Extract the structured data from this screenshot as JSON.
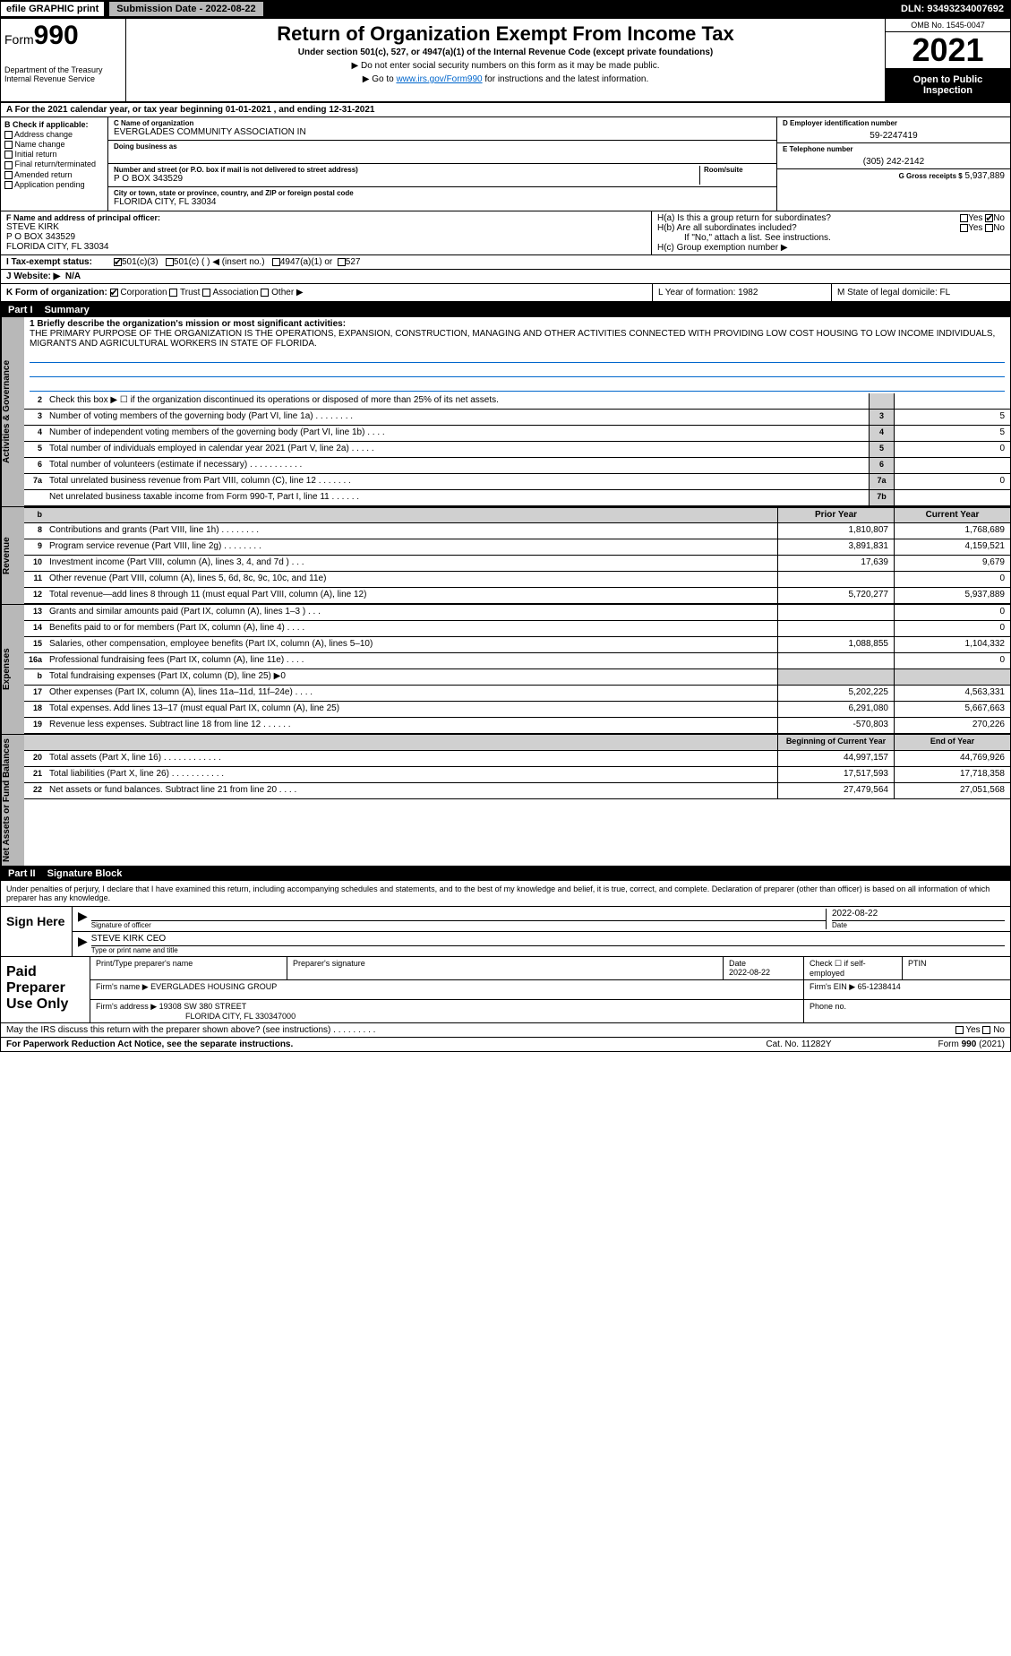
{
  "topbar": {
    "efile": "efile GRAPHIC print",
    "submission": "Submission Date - 2022-08-22",
    "dln": "DLN: 93493234007692"
  },
  "header": {
    "form_word": "Form",
    "form_num": "990",
    "title": "Return of Organization Exempt From Income Tax",
    "subtitle": "Under section 501(c), 527, or 4947(a)(1) of the Internal Revenue Code (except private foundations)",
    "note1": "▶ Do not enter social security numbers on this form as it may be made public.",
    "note2_pre": "▶ Go to ",
    "note2_link": "www.irs.gov/Form990",
    "note2_post": " for instructions and the latest information.",
    "dept": "Department of the Treasury\nInternal Revenue Service",
    "omb": "OMB No. 1545-0047",
    "year": "2021",
    "open": "Open to Public Inspection"
  },
  "period": "A For the 2021 calendar year, or tax year beginning 01-01-2021     , and ending 12-31-2021",
  "colB": {
    "hdr": "B Check if applicable:",
    "addr": "Address change",
    "name": "Name change",
    "initial": "Initial return",
    "final": "Final return/terminated",
    "amended": "Amended return",
    "app": "Application pending"
  },
  "colC": {
    "name_lbl": "C Name of organization",
    "name_val": "EVERGLADES COMMUNITY ASSOCIATION IN",
    "dba_lbl": "Doing business as",
    "dba_val": "",
    "addr_lbl": "Number and street (or P.O. box if mail is not delivered to street address)",
    "room_lbl": "Room/suite",
    "addr_val": "P O BOX 343529",
    "city_lbl": "City or town, state or province, country, and ZIP or foreign postal code",
    "city_val": "FLORIDA CITY, FL  33034"
  },
  "colD": {
    "ein_lbl": "D Employer identification number",
    "ein_val": "59-2247419",
    "tel_lbl": "E Telephone number",
    "tel_val": "(305) 242-2142",
    "gross_lbl": "G Gross receipts $",
    "gross_val": "5,937,889"
  },
  "rowF": {
    "lbl": "F  Name and address of principal officer:",
    "name": "STEVE KIRK",
    "addr1": "P O BOX 343529",
    "addr2": "FLORIDA CITY, FL  33034"
  },
  "rowH": {
    "ha": "H(a)  Is this a group return for subordinates?",
    "hb": "H(b)  Are all subordinates included?",
    "hb_note": "If \"No,\" attach a list. See instructions.",
    "hc": "H(c)  Group exemption number ▶",
    "yes": "Yes",
    "no": "No"
  },
  "taxrow": {
    "lbl": "I   Tax-exempt status:",
    "o1": "501(c)(3)",
    "o2": "501(c) (  ) ◀ (insert no.)",
    "o3": "4947(a)(1) or",
    "o4": "527"
  },
  "website": {
    "lbl": "J   Website: ▶",
    "val": "N/A"
  },
  "korg": {
    "lbl": "K Form of organization:",
    "corp": "Corporation",
    "trust": "Trust",
    "assoc": "Association",
    "other": "Other ▶",
    "l": "L Year of formation: 1982",
    "m": "M State of legal domicile: FL"
  },
  "part1": {
    "hdr": "Part I",
    "title": "Summary"
  },
  "mission": {
    "lbl": "1  Briefly describe the organization's mission or most significant activities:",
    "text": "THE PRIMARY PURPOSE OF THE ORGANIZATION IS THE OPERATIONS, EXPANSION, CONSTRUCTION, MANAGING AND OTHER ACTIVITIES CONNECTED WITH PROVIDING LOW COST HOUSING TO LOW INCOME INDIVIDUALS, MIGRANTS AND AGRICULTURAL WORKERS IN STATE OF FLORIDA."
  },
  "gov_rows": [
    {
      "n": "2",
      "t": "Check this box ▶ ☐  if the organization discontinued its operations or disposed of more than 25% of its net assets.",
      "b": "",
      "v": ""
    },
    {
      "n": "3",
      "t": "Number of voting members of the governing body (Part VI, line 1a)   .    .    .    .    .    .    .    .",
      "b": "3",
      "v": "5"
    },
    {
      "n": "4",
      "t": "Number of independent voting members of the governing body (Part VI, line 1b)    .    .    .    .",
      "b": "4",
      "v": "5"
    },
    {
      "n": "5",
      "t": "Total number of individuals employed in calendar year 2021 (Part V, line 2a)   .    .    .    .    .",
      "b": "5",
      "v": "0"
    },
    {
      "n": "6",
      "t": "Total number of volunteers (estimate if necessary)    .    .    .    .    .    .    .    .    .    .    .",
      "b": "6",
      "v": ""
    },
    {
      "n": "7a",
      "t": "Total unrelated business revenue from Part VIII, column (C), line 12   .    .    .    .    .    .    .",
      "b": "7a",
      "v": "0"
    },
    {
      "n": "",
      "t": "Net unrelated business taxable income from Form 990-T, Part I, line 11    .    .    .    .    .    .",
      "b": "7b",
      "v": ""
    }
  ],
  "two_col_hdr": {
    "prior": "Prior Year",
    "current": "Current Year"
  },
  "revenue_rows": [
    {
      "n": "8",
      "t": "Contributions and grants (Part VIII, line 1h)    .    .    .    .    .    .    .    .",
      "p": "1,810,807",
      "c": "1,768,689"
    },
    {
      "n": "9",
      "t": "Program service revenue (Part VIII, line 2g)   .    .    .    .    .    .    .    .",
      "p": "3,891,831",
      "c": "4,159,521"
    },
    {
      "n": "10",
      "t": "Investment income (Part VIII, column (A), lines 3, 4, and 7d )    .    .    .",
      "p": "17,639",
      "c": "9,679"
    },
    {
      "n": "11",
      "t": "Other revenue (Part VIII, column (A), lines 5, 6d, 8c, 9c, 10c, and 11e)",
      "p": "",
      "c": "0"
    },
    {
      "n": "12",
      "t": "Total revenue—add lines 8 through 11 (must equal Part VIII, column (A), line 12)",
      "p": "5,720,277",
      "c": "5,937,889"
    }
  ],
  "expense_rows": [
    {
      "n": "13",
      "t": "Grants and similar amounts paid (Part IX, column (A), lines 1–3 )  .    .    .",
      "p": "",
      "c": "0"
    },
    {
      "n": "14",
      "t": "Benefits paid to or for members (Part IX, column (A), line 4)  .    .    .    .",
      "p": "",
      "c": "0"
    },
    {
      "n": "15",
      "t": "Salaries, other compensation, employee benefits (Part IX, column (A), lines 5–10)",
      "p": "1,088,855",
      "c": "1,104,332"
    },
    {
      "n": "16a",
      "t": "Professional fundraising fees (Part IX, column (A), line 11e)   .    .    .    .",
      "p": "",
      "c": "0"
    },
    {
      "n": "b",
      "t": "Total fundraising expenses (Part IX, column (D), line 25) ▶0",
      "p": "",
      "c": "",
      "gray": true
    },
    {
      "n": "17",
      "t": "Other expenses (Part IX, column (A), lines 11a–11d, 11f–24e)   .    .    .    .",
      "p": "5,202,225",
      "c": "4,563,331"
    },
    {
      "n": "18",
      "t": "Total expenses. Add lines 13–17 (must equal Part IX, column (A), line 25)",
      "p": "6,291,080",
      "c": "5,667,663"
    },
    {
      "n": "19",
      "t": "Revenue less expenses. Subtract line 18 from line 12  .    .    .    .    .    .",
      "p": "-570,803",
      "c": "270,226"
    }
  ],
  "net_hdr": {
    "prior": "Beginning of Current Year",
    "current": "End of Year"
  },
  "net_rows": [
    {
      "n": "20",
      "t": "Total assets (Part X, line 16)  .    .    .    .    .    .    .    .    .    .    .    .",
      "p": "44,997,157",
      "c": "44,769,926"
    },
    {
      "n": "21",
      "t": "Total liabilities (Part X, line 26)   .    .    .    .    .    .    .    .    .    .    .",
      "p": "17,517,593",
      "c": "17,718,358"
    },
    {
      "n": "22",
      "t": "Net assets or fund balances. Subtract line 21 from line 20    .    .    .    .",
      "p": "27,479,564",
      "c": "27,051,568"
    }
  ],
  "part2": {
    "hdr": "Part II",
    "title": "Signature Block"
  },
  "sig": {
    "decl": "Under penalties of perjury, I declare that I have examined this return, including accompanying schedules and statements, and to the best of my knowledge and belief, it is true, correct, and complete. Declaration of preparer (other than officer) is based on all information of which preparer has any knowledge.",
    "sign_here": "Sign Here",
    "sig_officer": "Signature of officer",
    "date": "Date",
    "date_val": "2022-08-22",
    "name": "STEVE KIRK CEO",
    "name_lbl": "Type or print name and title"
  },
  "paid": {
    "lbl": "Paid Preparer Use Only",
    "h_name": "Print/Type preparer's name",
    "h_sig": "Preparer's signature",
    "h_date": "Date",
    "h_date_val": "2022-08-22",
    "h_chk": "Check ☐ if self-employed",
    "h_ptin": "PTIN",
    "firm_name_lbl": "Firm's name     ▶",
    "firm_name": "EVERGLADES HOUSING GROUP",
    "firm_ein_lbl": "Firm's EIN ▶",
    "firm_ein": "65-1238414",
    "firm_addr_lbl": "Firm's address ▶",
    "firm_addr": "19308 SW 380 STREET",
    "firm_addr2": "FLORIDA CITY, FL  330347000",
    "phone_lbl": "Phone no."
  },
  "discuss": "May the IRS discuss this return with the preparer shown above? (see instructions)    .    .    .    .    .    .    .    .    .",
  "footer": {
    "l": "For Paperwork Reduction Act Notice, see the separate instructions.",
    "m": "Cat. No. 11282Y",
    "r": "Form 990 (2021)"
  },
  "side_labels": {
    "gov": "Activities & Governance",
    "rev": "Revenue",
    "exp": "Expenses",
    "net": "Net Assets or Fund Balances"
  }
}
